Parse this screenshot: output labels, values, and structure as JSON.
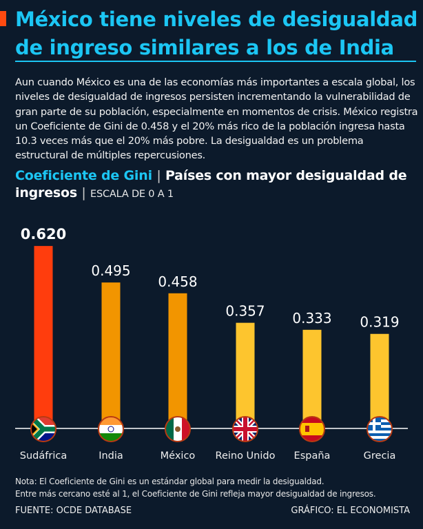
{
  "header": {
    "title": "México tiene niveles de desigualdad de ingreso similares a los de India",
    "intro": "Aun cuando México es una de las economías más importantes a escala global, los niveles de desigualdad de ingresos persisten incrementando la vulnerabilidad de gran parte de su población, especialmente en momentos de crisis. México registra un Coeficiente de Gini de 0.458 y el 20% más rico de la población ingresa hasta 10.3 veces más que el 20% más pobre. La desigualdad es un problema estructural de múltiples repercusiones.",
    "subtitle_accent": "Coeficiente de Gini",
    "subtitle_main": "Países con mayor desigualdad de ingresos",
    "subtitle_scale": "ESCALA DE 0 A 1",
    "separator": "|"
  },
  "chart_data": {
    "type": "bar",
    "title": "Coeficiente de Gini | Países con mayor desigualdad de ingresos",
    "ylabel": "ESCALA DE 0 A 1",
    "ylim": [
      0,
      1
    ],
    "grid": false,
    "categories": [
      "Sudáfrica",
      "India",
      "México",
      "Reino Unido",
      "España",
      "Grecia"
    ],
    "values": [
      0.62,
      0.495,
      0.458,
      0.357,
      0.333,
      0.319
    ],
    "labels": [
      "0.620",
      "0.495",
      "0.458",
      "0.357",
      "0.333",
      "0.319"
    ],
    "colors": [
      "#ff3d0d",
      "#f29500",
      "#f29500",
      "#fdc52e",
      "#fdc52e",
      "#fdc52e"
    ],
    "flags": [
      "south-africa-flag-icon",
      "india-flag-icon",
      "mexico-flag-icon",
      "uk-flag-icon",
      "spain-flag-icon",
      "greece-flag-icon"
    ]
  },
  "footer": {
    "note_line1": "Nota: El Coeficiente de Gini es un estándar global para medir la desigualdad.",
    "note_line2": "Entre más cercano esté al 1, el Coeficiente de Gini refleja mayor desigualdad de ingresos.",
    "source": "FUENTE: OCDE DATABASE",
    "credit": "GRÁFICO: EL ECONOMISTA"
  }
}
